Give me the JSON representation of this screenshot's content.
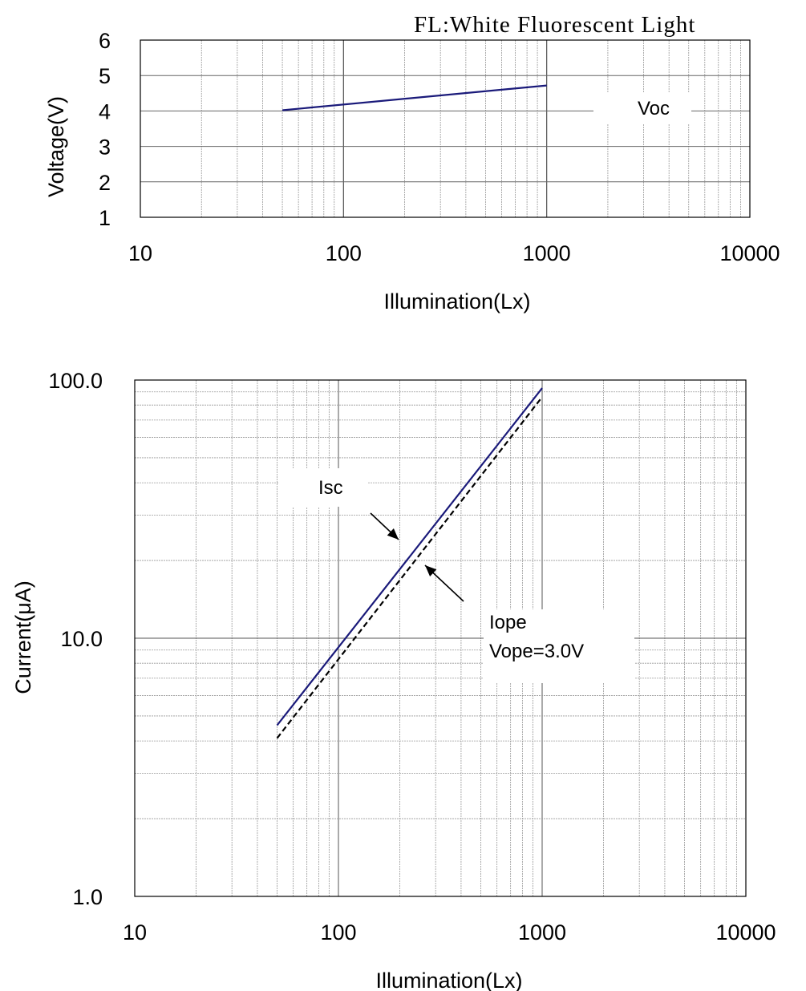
{
  "note": "FL:White Fluorescent Light",
  "chart_data": [
    {
      "type": "line",
      "x_scale": "log",
      "y_scale": "linear",
      "xlim": [
        10,
        10000
      ],
      "ylim": [
        1,
        6
      ],
      "xticks": [
        "10",
        "100",
        "1000",
        "10000"
      ],
      "yticks": [
        "1",
        "2",
        "3",
        "4",
        "5",
        "6"
      ],
      "xlabel": "Illumination(Lx)",
      "ylabel": "Voltage(V)",
      "series": [
        {
          "name": "Voc",
          "color": "#1a1a7a",
          "dash": false,
          "x": [
            50,
            1000
          ],
          "y": [
            4.02,
            4.72
          ]
        }
      ]
    },
    {
      "type": "line",
      "x_scale": "log",
      "y_scale": "log",
      "xlim": [
        10,
        10000
      ],
      "ylim": [
        1,
        100
      ],
      "xticks": [
        "10",
        "100",
        "1000",
        "10000"
      ],
      "yticks": [
        "1.0",
        "10.0",
        "100.0"
      ],
      "xlabel": "Illumination(Lx)",
      "ylabel": "Current(μA)",
      "series": [
        {
          "name": "Isc",
          "color": "#1a1a7a",
          "dash": false,
          "x": [
            50,
            1000
          ],
          "y": [
            4.6,
            93
          ]
        },
        {
          "name": "Iope",
          "sublabel": "Vope=3.0V",
          "color": "#000000",
          "dash": true,
          "x": [
            50,
            1000
          ],
          "y": [
            4.1,
            86
          ]
        }
      ]
    }
  ]
}
